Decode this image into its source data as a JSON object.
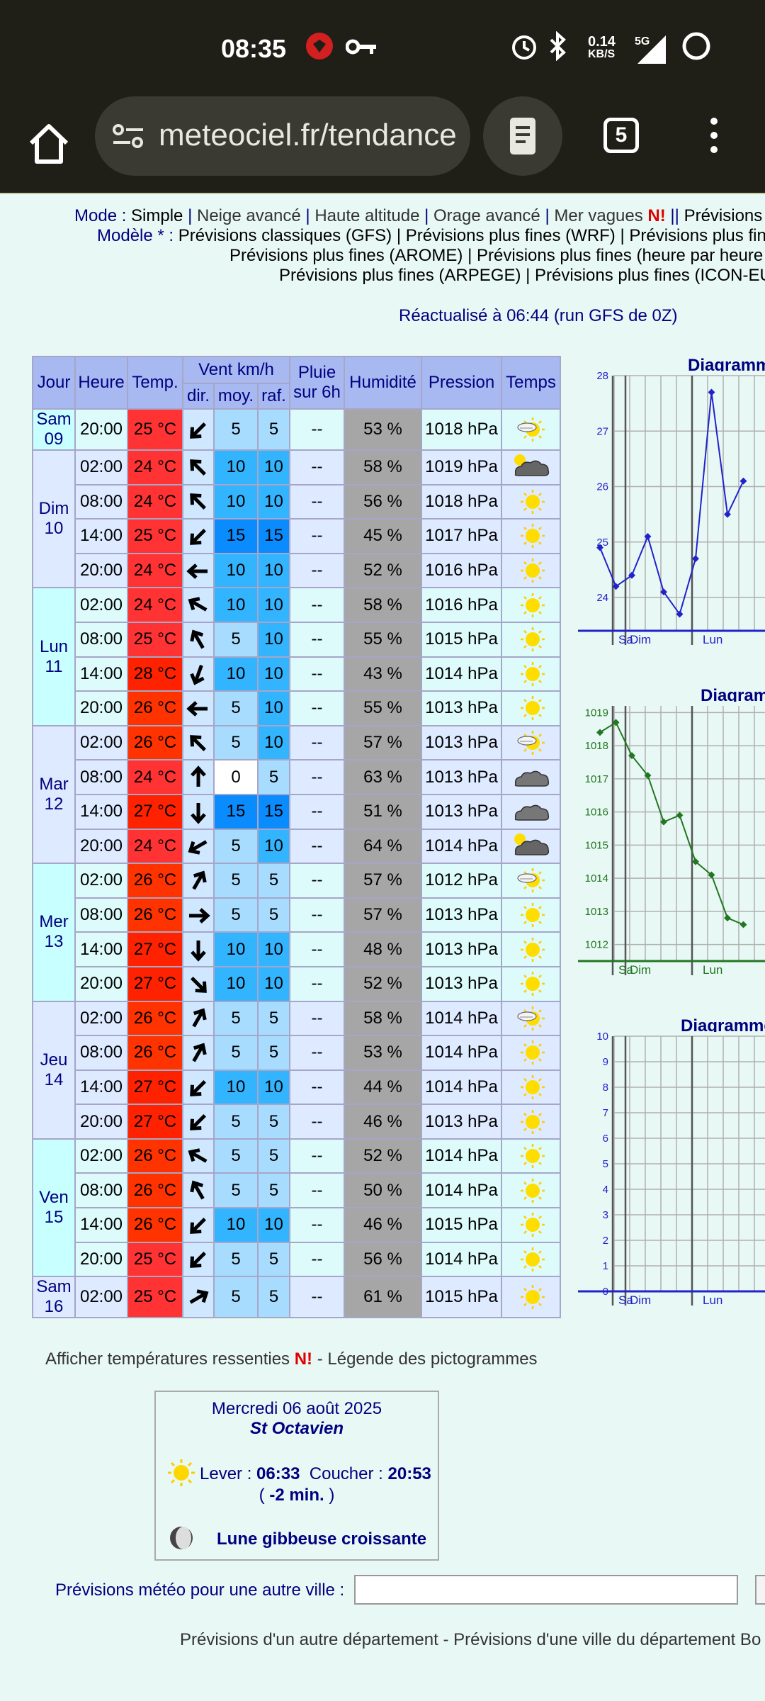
{
  "status_bar": {
    "time": "08:35",
    "net_speed": "0.14",
    "net_unit": "KB/S",
    "network": "5G"
  },
  "browser": {
    "url": "meteociel.fr/tendance",
    "tab_count": "5"
  },
  "mode_line": {
    "prefix": "Mode :",
    "simple": "Simple",
    "neige": "Neige avancé",
    "haute": "Haute altitude",
    "orage": "Orage avancé",
    "mer": "Mer vagues",
    "new": "N!",
    "prev": "Prévisions"
  },
  "model_line1": {
    "prefix": "Modèle * :",
    "gfs": "Prévisions classiques (GFS)",
    "wrf": "Prévisions plus fines (WRF)",
    "more": "Prévisions plus fin"
  },
  "model_line2": {
    "arome": "Prévisions plus fines (AROME)",
    "hourly": "Prévisions plus fines (heure par heure"
  },
  "model_line3": {
    "arpege": "Prévisions plus fines (ARPEGE)",
    "icon": "Prévisions plus fines (ICON-EU"
  },
  "update_text": "Réactualisé à 06:44 (run GFS de 0Z)",
  "table": {
    "headers": {
      "jour": "Jour",
      "heure": "Heure",
      "temp": "Temp.",
      "vent": "Vent km/h",
      "dir": "dir.",
      "moy": "moy.",
      "raf": "raf.",
      "pluie": "Pluie sur 6h",
      "hum": "Humidité",
      "pression": "Pression",
      "temps": "Temps"
    },
    "rows": [
      {
        "day": "Sam 09",
        "span": 1,
        "h": "20:00",
        "t": "25 °C",
        "tc": "#ff3333",
        "dir": 225,
        "moy": "5",
        "raf": "5",
        "pl": "--",
        "hu": "53 %",
        "pr": "1018 hPa",
        "wx": "sun-cloud-light-icon"
      },
      {
        "day": "Dim 10",
        "span": 4,
        "h": "02:00",
        "t": "24 °C",
        "tc": "#ff3333",
        "dir": 315,
        "moy": "10",
        "raf": "10",
        "pl": "--",
        "hu": "58 %",
        "pr": "1019 hPa",
        "wx": "sun-cloud-icon"
      },
      {
        "h": "08:00",
        "t": "24 °C",
        "tc": "#ff3333",
        "dir": 315,
        "moy": "10",
        "raf": "10",
        "pl": "--",
        "hu": "56 %",
        "pr": "1018 hPa",
        "wx": "sun-icon"
      },
      {
        "h": "14:00",
        "t": "25 °C",
        "tc": "#ff3333",
        "dir": 225,
        "moy": "15",
        "raf": "15",
        "pl": "--",
        "hu": "45 %",
        "pr": "1017 hPa",
        "wx": "sun-icon"
      },
      {
        "h": "20:00",
        "t": "24 °C",
        "tc": "#ff3333",
        "dir": 270,
        "moy": "10",
        "raf": "10",
        "pl": "--",
        "hu": "52 %",
        "pr": "1016 hPa",
        "wx": "sun-icon"
      },
      {
        "day": "Lun 11",
        "span": 4,
        "h": "02:00",
        "t": "24 °C",
        "tc": "#ff3333",
        "dir": 300,
        "moy": "10",
        "raf": "10",
        "pl": "--",
        "hu": "58 %",
        "pr": "1016 hPa",
        "wx": "sun-icon"
      },
      {
        "h": "08:00",
        "t": "25 °C",
        "tc": "#ff3333",
        "dir": 330,
        "moy": "5",
        "raf": "10",
        "pl": "--",
        "hu": "55 %",
        "pr": "1015 hPa",
        "wx": "sun-icon"
      },
      {
        "h": "14:00",
        "t": "28 °C",
        "tc": "#ff2200",
        "dir": 200,
        "moy": "10",
        "raf": "10",
        "pl": "--",
        "hu": "43 %",
        "pr": "1014 hPa",
        "wx": "sun-icon"
      },
      {
        "h": "20:00",
        "t": "26 °C",
        "tc": "#ff3300",
        "dir": 270,
        "moy": "5",
        "raf": "10",
        "pl": "--",
        "hu": "55 %",
        "pr": "1013 hPa",
        "wx": "sun-icon"
      },
      {
        "day": "Mar 12",
        "span": 4,
        "h": "02:00",
        "t": "26 °C",
        "tc": "#ff3300",
        "dir": 315,
        "moy": "5",
        "raf": "10",
        "pl": "--",
        "hu": "57 %",
        "pr": "1013 hPa",
        "wx": "sun-cloud-light-icon"
      },
      {
        "h": "08:00",
        "t": "24 °C",
        "tc": "#ff3333",
        "dir": 0,
        "moy": "0",
        "raf": "5",
        "pl": "--",
        "hu": "63 %",
        "pr": "1013 hPa",
        "wx": "cloud-icon"
      },
      {
        "h": "14:00",
        "t": "27 °C",
        "tc": "#ff2200",
        "dir": 180,
        "moy": "15",
        "raf": "15",
        "pl": "--",
        "hu": "51 %",
        "pr": "1013 hPa",
        "wx": "cloud-icon"
      },
      {
        "h": "20:00",
        "t": "24 °C",
        "tc": "#ff3333",
        "dir": 240,
        "moy": "5",
        "raf": "10",
        "pl": "--",
        "hu": "64 %",
        "pr": "1014 hPa",
        "wx": "sun-cloud-icon"
      },
      {
        "day": "Mer 13",
        "span": 4,
        "h": "02:00",
        "t": "26 °C",
        "tc": "#ff3300",
        "dir": 30,
        "moy": "5",
        "raf": "5",
        "pl": "--",
        "hu": "57 %",
        "pr": "1012 hPa",
        "wx": "sun-cloud-light-icon"
      },
      {
        "h": "08:00",
        "t": "26 °C",
        "tc": "#ff3300",
        "dir": 90,
        "moy": "5",
        "raf": "5",
        "pl": "--",
        "hu": "57 %",
        "pr": "1013 hPa",
        "wx": "sun-icon"
      },
      {
        "h": "14:00",
        "t": "27 °C",
        "tc": "#ff2200",
        "dir": 180,
        "moy": "10",
        "raf": "10",
        "pl": "--",
        "hu": "48 %",
        "pr": "1013 hPa",
        "wx": "sun-icon"
      },
      {
        "h": "20:00",
        "t": "27 °C",
        "tc": "#ff2200",
        "dir": 135,
        "moy": "10",
        "raf": "10",
        "pl": "--",
        "hu": "52 %",
        "pr": "1013 hPa",
        "wx": "sun-icon"
      },
      {
        "day": "Jeu 14",
        "span": 4,
        "h": "02:00",
        "t": "26 °C",
        "tc": "#ff3300",
        "dir": 30,
        "moy": "5",
        "raf": "5",
        "pl": "--",
        "hu": "58 %",
        "pr": "1014 hPa",
        "wx": "sun-cloud-light-icon"
      },
      {
        "h": "08:00",
        "t": "26 °C",
        "tc": "#ff3300",
        "dir": 30,
        "moy": "5",
        "raf": "5",
        "pl": "--",
        "hu": "53 %",
        "pr": "1014 hPa",
        "wx": "sun-icon"
      },
      {
        "h": "14:00",
        "t": "27 °C",
        "tc": "#ff2200",
        "dir": 225,
        "moy": "10",
        "raf": "10",
        "pl": "--",
        "hu": "44 %",
        "pr": "1014 hPa",
        "wx": "sun-icon"
      },
      {
        "h": "20:00",
        "t": "27 °C",
        "tc": "#ff2200",
        "dir": 225,
        "moy": "5",
        "raf": "5",
        "pl": "--",
        "hu": "46 %",
        "pr": "1013 hPa",
        "wx": "sun-icon"
      },
      {
        "day": "Ven 15",
        "span": 4,
        "h": "02:00",
        "t": "26 °C",
        "tc": "#ff3300",
        "dir": 300,
        "moy": "5",
        "raf": "5",
        "pl": "--",
        "hu": "52 %",
        "pr": "1014 hPa",
        "wx": "sun-icon"
      },
      {
        "h": "08:00",
        "t": "26 °C",
        "tc": "#ff3300",
        "dir": 330,
        "moy": "5",
        "raf": "5",
        "pl": "--",
        "hu": "50 %",
        "pr": "1014 hPa",
        "wx": "sun-icon"
      },
      {
        "h": "14:00",
        "t": "26 °C",
        "tc": "#ff3300",
        "dir": 225,
        "moy": "10",
        "raf": "10",
        "pl": "--",
        "hu": "46 %",
        "pr": "1015 hPa",
        "wx": "sun-icon"
      },
      {
        "h": "20:00",
        "t": "25 °C",
        "tc": "#ff3333",
        "dir": 225,
        "moy": "5",
        "raf": "5",
        "pl": "--",
        "hu": "56 %",
        "pr": "1014 hPa",
        "wx": "sun-icon"
      },
      {
        "day": "Sam 16",
        "span": 1,
        "h": "02:00",
        "t": "25 °C",
        "tc": "#ff3333",
        "dir": 60,
        "moy": "5",
        "raf": "5",
        "pl": "--",
        "hu": "61 %",
        "pr": "1015 hPa",
        "wx": "sun-icon"
      }
    ]
  },
  "chart_data": [
    {
      "type": "line",
      "title": "Diagramm",
      "y": [
        24.9,
        24.2,
        24.4,
        25.1,
        24.1,
        23.7,
        24.7,
        27.7,
        25.5,
        26.1
      ],
      "ylim": [
        23.4,
        28
      ],
      "yticks": [
        "24",
        "25",
        "26",
        "27",
        "28"
      ],
      "xticks": [
        "Sa",
        "Dim",
        "Lun"
      ],
      "color": "#2222cc"
    },
    {
      "type": "line",
      "title": "Diagram",
      "y": [
        1018.4,
        1018.7,
        1017.7,
        1017.1,
        1015.7,
        1015.9,
        1014.5,
        1014.1,
        1012.8,
        1012.6
      ],
      "ylim": [
        1011.5,
        1019.2
      ],
      "yticks": [
        "1012",
        "1013",
        "1014",
        "1015",
        "1016",
        "1017",
        "1018",
        "1019"
      ],
      "xticks": [
        "Sa",
        "Dim",
        "Lun"
      ],
      "color": "#227722"
    },
    {
      "type": "line",
      "title": "Diagramme",
      "y": [],
      "ylim": [
        0,
        10
      ],
      "yticks": [
        "0",
        "1",
        "2",
        "3",
        "4",
        "5",
        "6",
        "7",
        "8",
        "9",
        "10"
      ],
      "xticks": [
        "Sa",
        "Dim",
        "Lun"
      ],
      "color": "#2222cc"
    }
  ],
  "legend_line": {
    "a": "Afficher températures ressenties",
    "new": "N!",
    "b": "- Légende des pictogrammes"
  },
  "ephemeris": {
    "date": "Mercredi 06 août 2025",
    "saint": "St Octavien",
    "lever_label": "Lever :",
    "lever": "06:33",
    "coucher_label": "Coucher :",
    "coucher": "20:53",
    "diff_open": "(",
    "diff": "-2 min.",
    "diff_close": ")",
    "moon": "Lune gibbeuse croissante"
  },
  "other_city": {
    "label": "Prévisions météo pour une autre ville :",
    "value": ""
  },
  "footer": "Prévisions d'un autre département - Prévisions d'une ville du département Bo"
}
